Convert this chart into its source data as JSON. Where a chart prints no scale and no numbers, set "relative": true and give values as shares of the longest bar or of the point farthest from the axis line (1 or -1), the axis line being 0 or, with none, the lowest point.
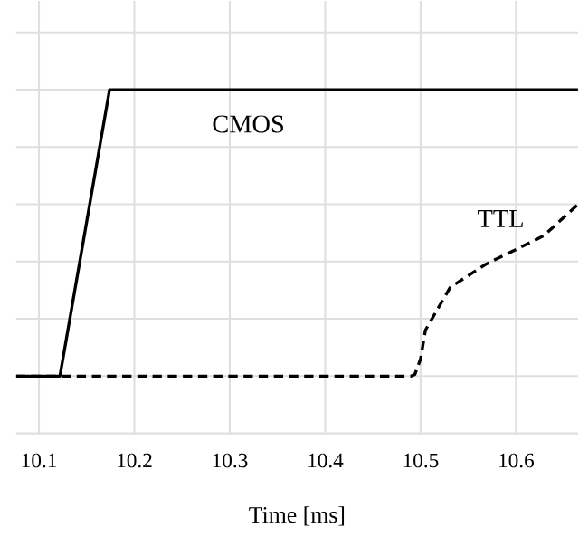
{
  "chart_data": {
    "type": "line",
    "relative": true,
    "xlabel": "Time [ms]",
    "xlim": [
      10.076,
      10.665
    ],
    "xticks": [
      10.1,
      10.2,
      10.3,
      10.4,
      10.5,
      10.6
    ],
    "grid": true,
    "series": [
      {
        "name": "CMOS",
        "color": "#000000",
        "line_style": "solid",
        "x": [
          10.076,
          10.122,
          10.174,
          10.665
        ],
        "values": [
          0,
          0,
          1,
          1
        ]
      },
      {
        "name": "TTL",
        "color": "#000000",
        "line_style": "dashed",
        "x": [
          10.076,
          10.49,
          10.494,
          10.5,
          10.505,
          10.531,
          10.568,
          10.629,
          10.665
        ],
        "values": [
          0,
          0,
          0.006,
          0.06,
          0.16,
          0.31,
          0.39,
          0.49,
          0.6
        ]
      }
    ]
  }
}
